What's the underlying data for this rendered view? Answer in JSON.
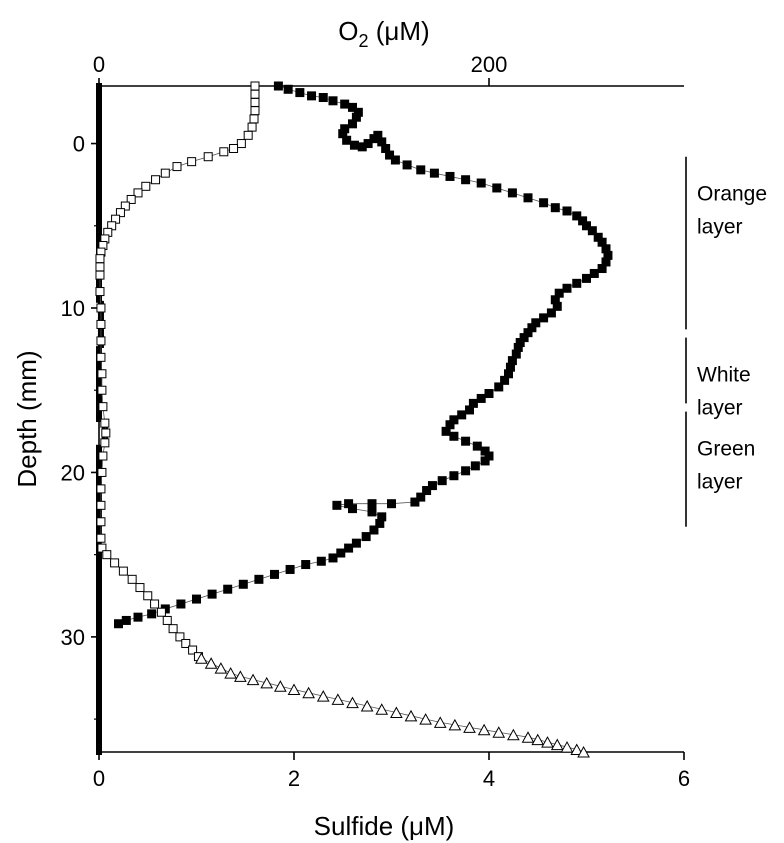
{
  "chart_data": {
    "type": "scatter",
    "bottom_axis": {
      "label": "Sulfide (μM)",
      "ticks": [
        "0",
        "2",
        "4",
        "6"
      ],
      "range": [
        0,
        6
      ]
    },
    "top_axis": {
      "label_main": "O",
      "label_sub": "2",
      "label_rest": " (μM)",
      "ticks": [
        "0",
        "200"
      ],
      "range": [
        0,
        300
      ]
    },
    "left_axis": {
      "label": "Depth (mm)",
      "ticks": [
        "0",
        "10",
        "20",
        "30"
      ],
      "range": [
        -3.5,
        37
      ],
      "inverted": true
    },
    "layers": [
      {
        "label_lines": [
          "Orange",
          "layer"
        ],
        "from": 0.8,
        "to": 11.3
      },
      {
        "label_lines": [
          "White",
          "layer"
        ],
        "from": 11.8,
        "to": 15.8
      },
      {
        "label_lines": [
          "Green",
          "layer"
        ],
        "from": 16.3,
        "to": 23.3
      }
    ],
    "series": [
      {
        "axis": "top",
        "marker": "filled-square",
        "color": "#000000",
        "points": [
          [
            92,
            -3.5
          ],
          [
            97,
            -3.3
          ],
          [
            103,
            -3.1
          ],
          [
            109,
            -2.9
          ],
          [
            115,
            -2.8
          ],
          [
            120,
            -2.6
          ],
          [
            126,
            -2.4
          ],
          [
            130,
            -2.2
          ],
          [
            133,
            -1.9
          ],
          [
            132,
            -1.6
          ],
          [
            130,
            -1.2
          ],
          [
            126,
            -0.9
          ],
          [
            125,
            -0.6
          ],
          [
            127,
            -0.2
          ],
          [
            131,
            0.1
          ],
          [
            135,
            0.2
          ],
          [
            138,
            0.0
          ],
          [
            141,
            -0.3
          ],
          [
            143,
            -0.5
          ],
          [
            145,
            -0.1
          ],
          [
            147,
            0.3
          ],
          [
            149,
            0.7
          ],
          [
            152,
            1.0
          ],
          [
            158,
            1.3
          ],
          [
            165,
            1.6
          ],
          [
            172,
            1.8
          ],
          [
            180,
            2.0
          ],
          [
            188,
            2.2
          ],
          [
            196,
            2.4
          ],
          [
            204,
            2.7
          ],
          [
            212,
            3.0
          ],
          [
            220,
            3.3
          ],
          [
            228,
            3.6
          ],
          [
            234,
            3.9
          ],
          [
            240,
            4.1
          ],
          [
            245,
            4.4
          ],
          [
            248,
            4.7
          ],
          [
            250,
            5.0
          ],
          [
            253,
            5.3
          ],
          [
            256,
            5.7
          ],
          [
            258,
            6.0
          ],
          [
            260,
            6.4
          ],
          [
            261,
            6.8
          ],
          [
            260,
            7.2
          ],
          [
            258,
            7.6
          ],
          [
            254,
            7.9
          ],
          [
            250,
            8.2
          ],
          [
            245,
            8.5
          ],
          [
            240,
            8.8
          ],
          [
            236,
            9.1
          ],
          [
            234,
            9.5
          ],
          [
            235,
            9.9
          ],
          [
            232,
            10.3
          ],
          [
            228,
            10.6
          ],
          [
            224,
            10.9
          ],
          [
            222,
            11.2
          ],
          [
            220,
            11.5
          ],
          [
            218,
            11.8
          ],
          [
            216,
            12.1
          ],
          [
            215,
            12.4
          ],
          [
            214,
            12.8
          ],
          [
            212,
            13.2
          ],
          [
            211,
            13.6
          ],
          [
            210,
            14.0
          ],
          [
            208,
            14.4
          ],
          [
            205,
            14.8
          ],
          [
            200,
            15.2
          ],
          [
            196,
            15.5
          ],
          [
            192,
            15.8
          ],
          [
            190,
            16.2
          ],
          [
            186,
            16.5
          ],
          [
            182,
            16.8
          ],
          [
            180,
            17.1
          ],
          [
            178,
            17.5
          ],
          [
            182,
            17.8
          ],
          [
            188,
            18.1
          ],
          [
            194,
            18.4
          ],
          [
            198,
            18.7
          ],
          [
            200,
            19.0
          ],
          [
            198,
            19.3
          ],
          [
            193,
            19.6
          ],
          [
            188,
            19.9
          ],
          [
            182,
            20.2
          ],
          [
            176,
            20.5
          ],
          [
            171,
            20.8
          ],
          [
            168,
            21.1
          ],
          [
            165,
            21.5
          ],
          [
            162,
            21.8
          ],
          [
            150,
            21.9
          ],
          [
            140,
            21.9
          ],
          [
            128,
            21.9
          ],
          [
            122,
            22.0
          ],
          [
            130,
            22.2
          ],
          [
            140,
            22.4
          ],
          [
            145,
            22.7
          ],
          [
            144,
            23.1
          ],
          [
            141,
            23.5
          ],
          [
            137,
            23.9
          ],
          [
            132,
            24.3
          ],
          [
            128,
            24.6
          ],
          [
            124,
            24.9
          ],
          [
            120,
            25.2
          ],
          [
            114,
            25.4
          ],
          [
            106,
            25.6
          ],
          [
            98,
            25.9
          ],
          [
            90,
            26.2
          ],
          [
            82,
            26.5
          ],
          [
            74,
            26.8
          ],
          [
            66,
            27.1
          ],
          [
            58,
            27.4
          ],
          [
            50,
            27.7
          ],
          [
            42,
            28.0
          ],
          [
            34,
            28.3
          ],
          [
            27,
            28.6
          ],
          [
            20,
            28.8
          ],
          [
            14,
            29.0
          ],
          [
            10,
            29.2
          ]
        ]
      },
      {
        "axis": "bottom",
        "marker": "open-square",
        "color": "#000000",
        "points": [
          [
            1.6,
            -3.5
          ],
          [
            1.6,
            -3.0
          ],
          [
            1.6,
            -2.5
          ],
          [
            1.6,
            -2.0
          ],
          [
            1.59,
            -1.5
          ],
          [
            1.57,
            -1.0
          ],
          [
            1.53,
            -0.5
          ],
          [
            1.46,
            0.0
          ],
          [
            1.38,
            0.3
          ],
          [
            1.28,
            0.5
          ],
          [
            1.12,
            0.8
          ],
          [
            0.95,
            1.1
          ],
          [
            0.8,
            1.4
          ],
          [
            0.68,
            1.8
          ],
          [
            0.58,
            2.2
          ],
          [
            0.48,
            2.6
          ],
          [
            0.4,
            3.0
          ],
          [
            0.33,
            3.4
          ],
          [
            0.27,
            3.8
          ],
          [
            0.22,
            4.2
          ],
          [
            0.17,
            4.6
          ],
          [
            0.13,
            5.0
          ],
          [
            0.09,
            5.4
          ],
          [
            0.06,
            5.8
          ],
          [
            0.04,
            6.2
          ],
          [
            0.02,
            6.6
          ],
          [
            0.01,
            7.0
          ],
          [
            0.01,
            7.5
          ],
          [
            0.01,
            8.0
          ],
          [
            0.01,
            9.0
          ],
          [
            0.02,
            10.0
          ],
          [
            0.02,
            11.0
          ],
          [
            0.02,
            12.0
          ],
          [
            0.02,
            13.0
          ],
          [
            0.03,
            14.0
          ],
          [
            0.03,
            15.0
          ],
          [
            0.04,
            16.0
          ],
          [
            0.06,
            17.0
          ],
          [
            0.07,
            17.6
          ],
          [
            0.06,
            18.2
          ],
          [
            0.04,
            19.0
          ],
          [
            0.03,
            20.0
          ],
          [
            0.02,
            21.0
          ],
          [
            0.02,
            22.0
          ],
          [
            0.02,
            23.0
          ],
          [
            0.02,
            24.0
          ],
          [
            0.03,
            24.6
          ],
          [
            0.08,
            25.0
          ],
          [
            0.16,
            25.5
          ],
          [
            0.25,
            26.0
          ],
          [
            0.34,
            26.5
          ],
          [
            0.42,
            27.0
          ],
          [
            0.5,
            27.5
          ],
          [
            0.57,
            28.0
          ],
          [
            0.64,
            28.5
          ],
          [
            0.7,
            29.0
          ],
          [
            0.76,
            29.5
          ],
          [
            0.83,
            30.0
          ],
          [
            0.89,
            30.4
          ],
          [
            0.96,
            30.8
          ],
          [
            1.02,
            31.2
          ]
        ]
      },
      {
        "axis": "bottom",
        "marker": "open-triangle",
        "color": "#000000",
        "points": [
          [
            1.05,
            31.3
          ],
          [
            1.15,
            31.6
          ],
          [
            1.25,
            31.9
          ],
          [
            1.35,
            32.2
          ],
          [
            1.45,
            32.4
          ],
          [
            1.58,
            32.6
          ],
          [
            1.72,
            32.8
          ],
          [
            1.86,
            33.0
          ],
          [
            2.0,
            33.2
          ],
          [
            2.15,
            33.4
          ],
          [
            2.3,
            33.6
          ],
          [
            2.45,
            33.8
          ],
          [
            2.6,
            34.0
          ],
          [
            2.75,
            34.2
          ],
          [
            2.9,
            34.4
          ],
          [
            3.05,
            34.6
          ],
          [
            3.2,
            34.8
          ],
          [
            3.35,
            35.0
          ],
          [
            3.5,
            35.2
          ],
          [
            3.65,
            35.35
          ],
          [
            3.8,
            35.5
          ],
          [
            3.95,
            35.65
          ],
          [
            4.1,
            35.8
          ],
          [
            4.25,
            35.95
          ],
          [
            4.4,
            36.1
          ],
          [
            4.5,
            36.25
          ],
          [
            4.6,
            36.4
          ],
          [
            4.7,
            36.55
          ],
          [
            4.8,
            36.7
          ],
          [
            4.9,
            36.85
          ],
          [
            4.97,
            37.0
          ]
        ]
      }
    ],
    "baseline_series": {
      "axis": "bottom",
      "marker": "filled-square",
      "description_values": [
        0,
        0
      ]
    }
  }
}
